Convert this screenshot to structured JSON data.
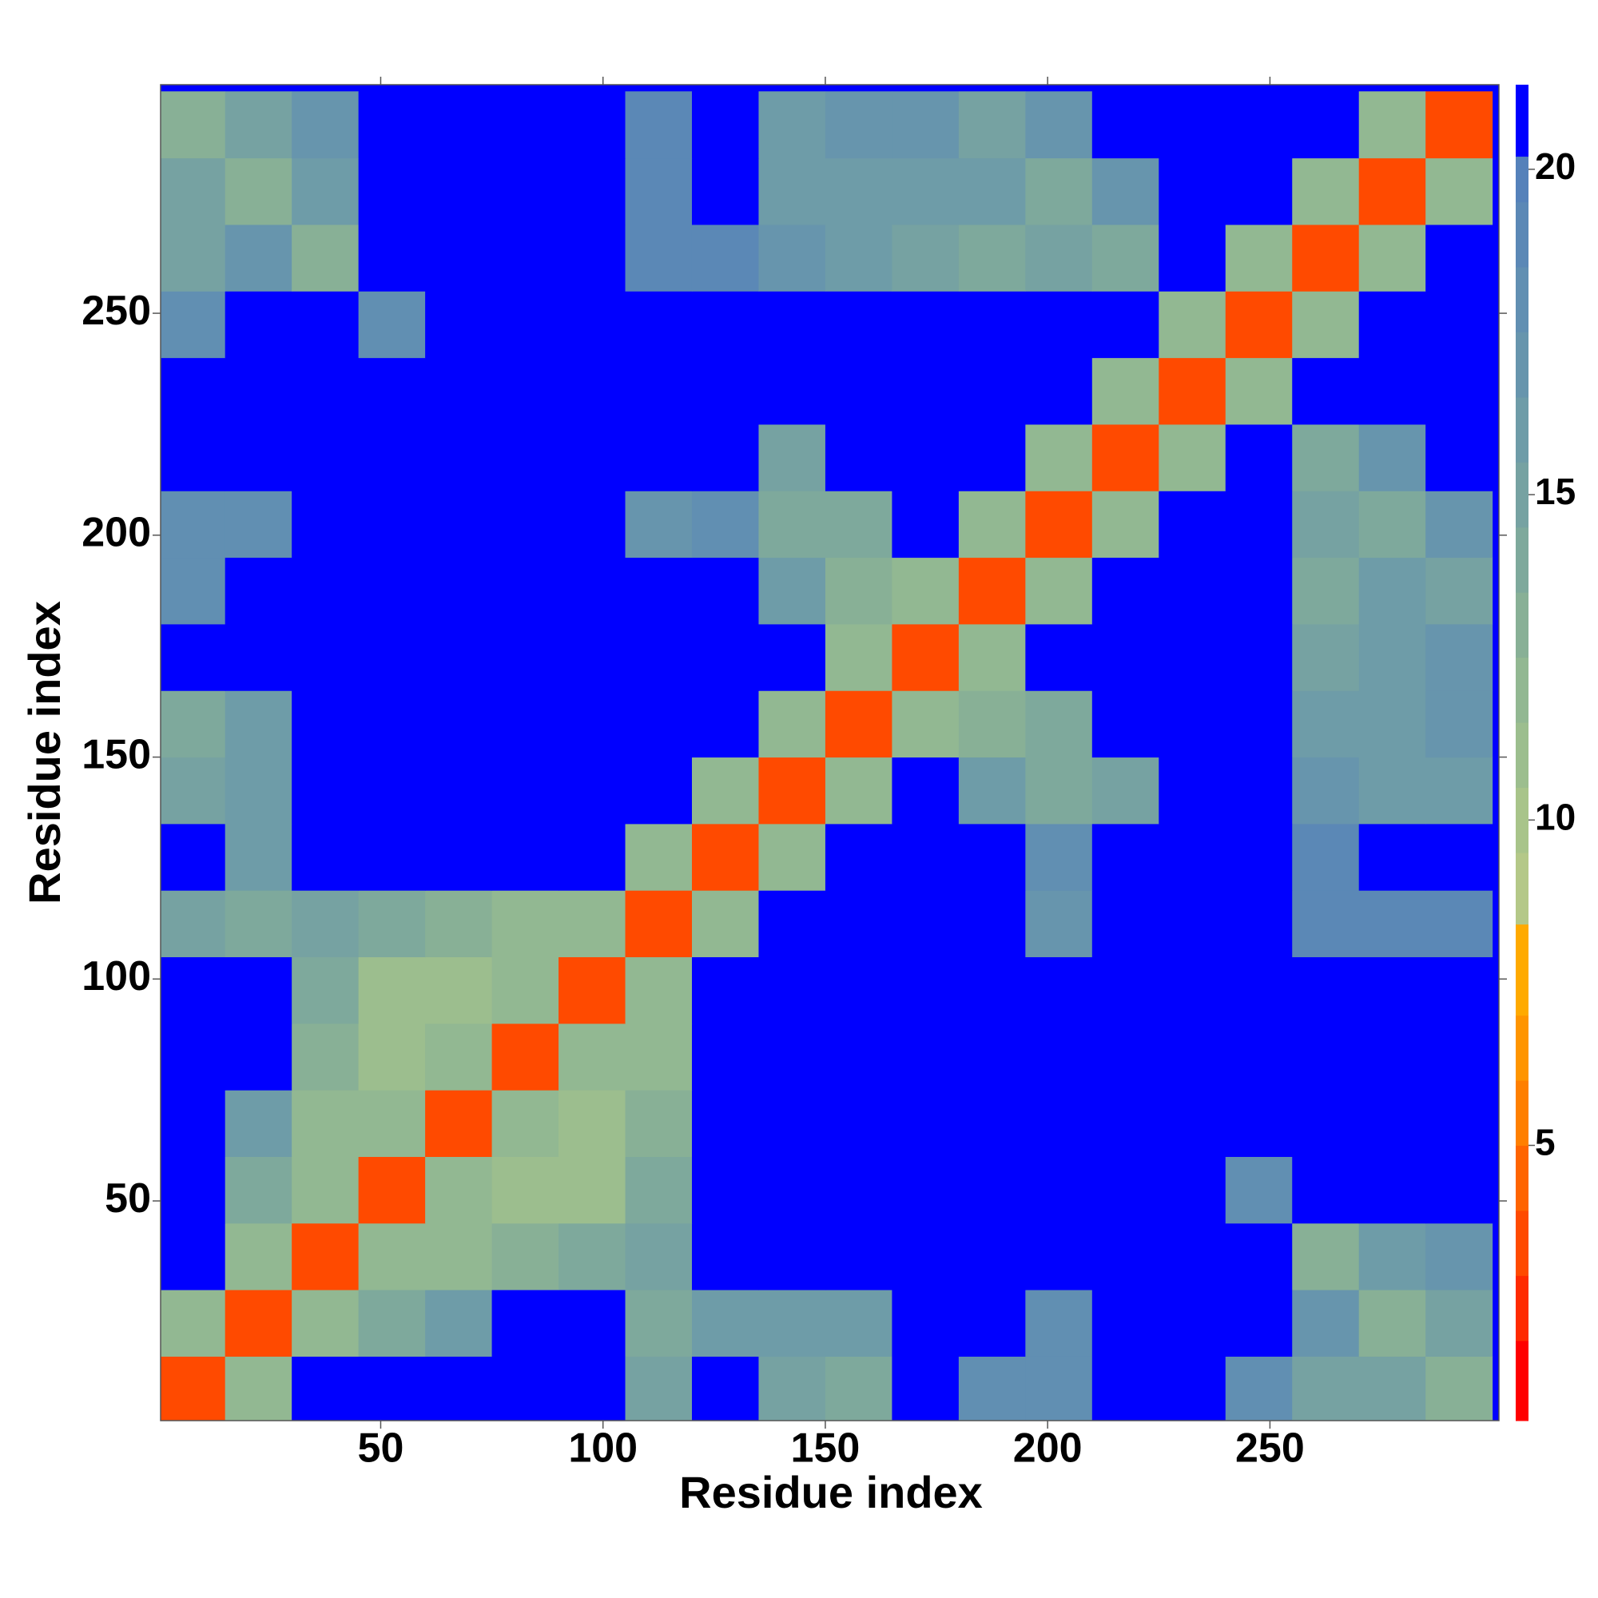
{
  "chart_data": {
    "type": "heatmap",
    "xlabel": "Residue index",
    "ylabel": "Residue index",
    "x_edges": [
      0,
      15,
      30,
      45,
      60,
      75,
      90,
      105,
      120,
      135,
      150,
      165,
      180,
      195,
      210,
      225,
      240,
      255,
      270,
      285,
      300
    ],
    "y_edges": [
      0,
      15,
      30,
      45,
      60,
      75,
      90,
      105,
      120,
      135,
      150,
      165,
      180,
      195,
      210,
      225,
      240,
      255,
      270,
      285,
      300
    ],
    "z": [
      [
        4,
        12,
        21,
        21,
        21,
        21,
        21,
        15,
        21,
        15,
        14,
        21,
        18,
        18,
        21,
        21,
        18,
        15,
        15,
        13
      ],
      [
        12,
        4,
        12,
        14,
        16,
        21,
        21,
        14,
        16,
        16,
        16,
        21,
        21,
        18,
        21,
        21,
        21,
        17,
        13,
        15
      ],
      [
        21,
        12,
        4,
        12,
        12,
        13,
        14,
        15,
        21,
        21,
        21,
        21,
        21,
        21,
        21,
        21,
        21,
        13,
        16,
        17
      ],
      [
        21,
        14,
        12,
        4,
        12,
        11,
        11,
        14,
        21,
        21,
        21,
        21,
        21,
        21,
        21,
        21,
        18,
        21,
        21,
        21
      ],
      [
        21,
        16,
        12,
        12,
        4,
        12,
        11,
        13,
        21,
        21,
        21,
        21,
        21,
        21,
        21,
        21,
        21,
        21,
        21,
        21
      ],
      [
        21,
        21,
        13,
        11,
        12,
        4,
        12,
        12,
        21,
        21,
        21,
        21,
        21,
        21,
        21,
        21,
        21,
        21,
        21,
        21
      ],
      [
        21,
        21,
        14,
        11,
        11,
        12,
        4,
        12,
        21,
        21,
        21,
        21,
        21,
        21,
        21,
        21,
        21,
        21,
        21,
        21
      ],
      [
        15,
        14,
        15,
        14,
        13,
        12,
        12,
        4,
        12,
        21,
        21,
        21,
        21,
        17,
        21,
        21,
        21,
        19,
        19,
        19
      ],
      [
        21,
        16,
        21,
        21,
        21,
        21,
        21,
        12,
        4,
        12,
        21,
        21,
        21,
        18,
        21,
        21,
        21,
        19,
        21,
        21
      ],
      [
        15,
        16,
        21,
        21,
        21,
        21,
        21,
        21,
        12,
        4,
        12,
        21,
        16,
        14,
        15,
        21,
        21,
        17,
        16,
        16
      ],
      [
        14,
        16,
        21,
        21,
        21,
        21,
        21,
        21,
        21,
        12,
        4,
        12,
        13,
        14,
        21,
        21,
        21,
        16,
        16,
        17
      ],
      [
        21,
        21,
        21,
        21,
        21,
        21,
        21,
        21,
        21,
        21,
        12,
        4,
        12,
        21,
        21,
        21,
        21,
        15,
        16,
        17
      ],
      [
        18,
        21,
        21,
        21,
        21,
        21,
        21,
        21,
        21,
        16,
        13,
        12,
        4,
        12,
        21,
        21,
        21,
        14,
        16,
        15
      ],
      [
        18,
        18,
        21,
        21,
        21,
        21,
        21,
        17,
        18,
        14,
        14,
        21,
        12,
        4,
        12,
        21,
        21,
        15,
        14,
        17
      ],
      [
        21,
        21,
        21,
        21,
        21,
        21,
        21,
        21,
        21,
        15,
        21,
        21,
        21,
        12,
        4,
        12,
        21,
        14,
        17,
        21
      ],
      [
        21,
        21,
        21,
        21,
        21,
        21,
        21,
        21,
        21,
        21,
        21,
        21,
        21,
        21,
        12,
        4,
        12,
        21,
        21,
        21
      ],
      [
        18,
        21,
        21,
        18,
        21,
        21,
        21,
        21,
        21,
        21,
        21,
        21,
        21,
        21,
        21,
        12,
        4,
        12,
        21,
        21
      ],
      [
        15,
        17,
        13,
        21,
        21,
        21,
        21,
        19,
        19,
        17,
        16,
        15,
        14,
        15,
        14,
        21,
        12,
        4,
        12,
        21
      ],
      [
        15,
        13,
        16,
        21,
        21,
        21,
        21,
        19,
        21,
        16,
        16,
        16,
        16,
        14,
        17,
        21,
        21,
        12,
        4,
        12
      ],
      [
        13,
        15,
        17,
        21,
        21,
        21,
        21,
        19,
        21,
        16,
        17,
        17,
        15,
        17,
        21,
        21,
        21,
        21,
        12,
        4
      ]
    ],
    "xlim": [
      0.5,
      301.5
    ],
    "ylim": [
      0.5,
      301.5
    ],
    "xticks": [
      50,
      100,
      150,
      200,
      250
    ],
    "yticks": [
      50,
      100,
      150,
      200,
      250
    ],
    "background": "#0000ff",
    "colorbar": {
      "lim": [
        0.77,
        21.3
      ],
      "ticks": [
        5,
        10,
        15,
        20
      ],
      "levels": [
        0.77,
        2,
        3,
        4,
        5,
        6,
        7,
        8.4,
        9.5,
        10.5,
        11.5,
        12.5,
        13.5,
        14.5,
        15.5,
        16.5,
        17.5,
        18.5,
        19.5,
        20.2,
        21.3
      ],
      "colors": [
        "#ff0000",
        "#ff2a00",
        "#ff4a00",
        "#ff6400",
        "#ff7f00",
        "#ff9500",
        "#ffaa00",
        "#b4c888",
        "#a8c48a",
        "#9cbe8e",
        "#92b892",
        "#88b096",
        "#7ea99c",
        "#76a2a2",
        "#6e9ca8",
        "#6795ad",
        "#618fb2",
        "#5b88b6",
        "#5581ba",
        "#0000ff"
      ]
    }
  }
}
